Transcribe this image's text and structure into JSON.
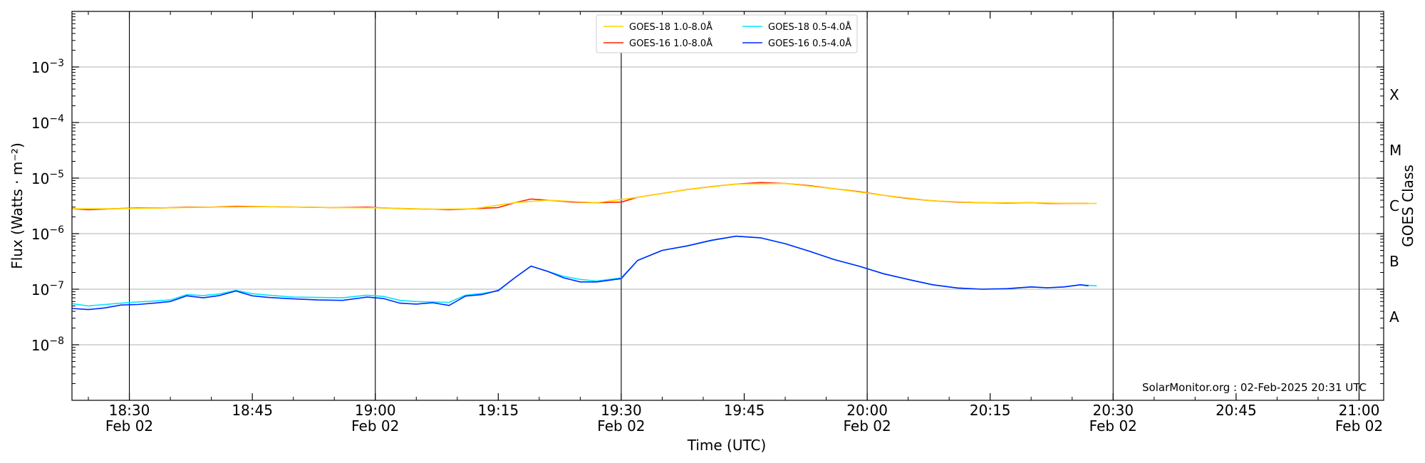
{
  "chart_data": {
    "type": "line",
    "xlabel": "Time (UTC)",
    "ylabel": "Flux (Watts · m⁻²)",
    "y2label": "GOES Class",
    "yscale": "log",
    "ylim": [
      1e-09,
      0.01
    ],
    "xlim": [
      "18:23",
      "21:03"
    ],
    "grid": "y-major",
    "legend_position": "top-center",
    "credit": "SolarMonitor.org : 02-Feb-2025 20:31 UTC",
    "x_ticks": [
      {
        "time": "18:30",
        "label": "18:30",
        "sublabel": "Feb 02",
        "vline": true
      },
      {
        "time": "18:45",
        "label": "18:45",
        "sublabel": "",
        "vline": false
      },
      {
        "time": "19:00",
        "label": "19:00",
        "sublabel": "Feb 02",
        "vline": true
      },
      {
        "time": "19:15",
        "label": "19:15",
        "sublabel": "",
        "vline": false
      },
      {
        "time": "19:30",
        "label": "19:30",
        "sublabel": "Feb 02",
        "vline": true
      },
      {
        "time": "19:45",
        "label": "19:45",
        "sublabel": "",
        "vline": false
      },
      {
        "time": "20:00",
        "label": "20:00",
        "sublabel": "Feb 02",
        "vline": true
      },
      {
        "time": "20:15",
        "label": "20:15",
        "sublabel": "",
        "vline": false
      },
      {
        "time": "20:30",
        "label": "20:30",
        "sublabel": "Feb 02",
        "vline": true
      },
      {
        "time": "20:45",
        "label": "20:45",
        "sublabel": "",
        "vline": false
      },
      {
        "time": "21:00",
        "label": "21:00",
        "sublabel": "Feb 02",
        "vline": true
      }
    ],
    "y_ticks": [
      {
        "value": 1e-08,
        "mantissa": "10",
        "exp": "−8"
      },
      {
        "value": 1e-07,
        "mantissa": "10",
        "exp": "−7"
      },
      {
        "value": 1e-06,
        "mantissa": "10",
        "exp": "−6"
      },
      {
        "value": 1e-05,
        "mantissa": "10",
        "exp": "−5"
      },
      {
        "value": 0.0001,
        "mantissa": "10",
        "exp": "−4"
      },
      {
        "value": 0.001,
        "mantissa": "10",
        "exp": "−3"
      }
    ],
    "goes_classes": [
      {
        "label": "A",
        "value": 3.16e-08
      },
      {
        "label": "B",
        "value": 3.16e-07
      },
      {
        "label": "C",
        "value": 3.16e-06
      },
      {
        "label": "M",
        "value": 3.16e-05
      },
      {
        "label": "X",
        "value": 0.000316
      }
    ],
    "series": [
      {
        "name": "GOES-16 1.0-8.0Å",
        "color": "#ff2200",
        "x": [
          "18:23",
          "18:25",
          "18:28",
          "18:31",
          "18:34",
          "18:37",
          "18:40",
          "18:43",
          "18:47",
          "18:51",
          "18:55",
          "18:59",
          "19:01",
          "19:04",
          "19:07",
          "19:09",
          "19:12",
          "19:15",
          "19:17",
          "19:19",
          "19:21",
          "19:24",
          "19:27",
          "19:30",
          "19:32",
          "19:35",
          "19:38",
          "19:41",
          "19:44",
          "19:47",
          "19:50",
          "19:53",
          "19:56",
          "19:59",
          "20:02",
          "20:05",
          "20:08",
          "20:11",
          "20:14",
          "20:17",
          "20:20",
          "20:22",
          "20:25",
          "20:27"
        ],
        "y": [
          2.8e-06,
          2.7e-06,
          2.8e-06,
          2.9e-06,
          2.9e-06,
          3e-06,
          3e-06,
          3.1e-06,
          3.05e-06,
          3e-06,
          2.95e-06,
          3e-06,
          2.9e-06,
          2.8e-06,
          2.75e-06,
          2.7e-06,
          2.8e-06,
          2.95e-06,
          3.6e-06,
          4.2e-06,
          4e-06,
          3.7e-06,
          3.6e-06,
          3.7e-06,
          4.5e-06,
          5.3e-06,
          6.2e-06,
          7e-06,
          7.8e-06,
          8.3e-06,
          8e-06,
          7.3e-06,
          6.4e-06,
          5.7e-06,
          4.9e-06,
          4.3e-06,
          3.9e-06,
          3.7e-06,
          3.6e-06,
          3.55e-06,
          3.6e-06,
          3.5e-06,
          3.5e-06,
          3.5e-06
        ]
      },
      {
        "name": "GOES-18 1.0-8.0Å",
        "color": "#ffd400",
        "x": [
          "18:23",
          "18:28",
          "18:34",
          "18:40",
          "18:47",
          "18:55",
          "19:01",
          "19:07",
          "19:12",
          "19:17",
          "19:21",
          "19:27",
          "19:32",
          "19:38",
          "19:44",
          "19:50",
          "19:56",
          "20:02",
          "20:08",
          "20:14",
          "20:20",
          "20:25",
          "20:28"
        ],
        "y": [
          2.8e-06,
          2.8e-06,
          2.9e-06,
          3e-06,
          3.05e-06,
          2.95e-06,
          2.9e-06,
          2.75e-06,
          2.8e-06,
          3.6e-06,
          4e-06,
          3.6e-06,
          4.5e-06,
          6.2e-06,
          7.8e-06,
          8e-06,
          6.4e-06,
          4.9e-06,
          3.9e-06,
          3.6e-06,
          3.6e-06,
          3.5e-06,
          3.5e-06
        ]
      },
      {
        "name": "GOES-18 0.5-4.0Å",
        "color": "#00e5ff",
        "x": [
          "18:23",
          "18:25",
          "18:27",
          "18:29",
          "18:31",
          "18:33",
          "18:35",
          "18:37",
          "18:39",
          "18:41",
          "18:43",
          "18:45",
          "18:47",
          "18:50",
          "18:53",
          "18:56",
          "18:59",
          "19:01",
          "19:03",
          "19:05",
          "19:07",
          "19:09",
          "19:11",
          "19:13",
          "19:15",
          "19:17",
          "19:19",
          "19:21",
          "19:23",
          "19:25",
          "19:27",
          "19:30",
          "19:32",
          "19:35",
          "19:38",
          "19:41",
          "19:44",
          "19:47",
          "19:50",
          "19:53",
          "19:56",
          "19:59",
          "20:02",
          "20:05",
          "20:08",
          "20:11",
          "20:14",
          "20:17",
          "20:20",
          "20:22",
          "20:24",
          "20:26",
          "20:28"
        ],
        "y": [
          5.5e-08,
          5e-08,
          5.3e-08,
          5.6e-08,
          5.9e-08,
          6.1e-08,
          6.4e-08,
          8e-08,
          7.7e-08,
          8.2e-08,
          9.5e-08,
          8.3e-08,
          7.8e-08,
          7.2e-08,
          7.1e-08,
          7e-08,
          7.8e-08,
          7.4e-08,
          6.3e-08,
          6e-08,
          5.9e-08,
          5.8e-08,
          7.8e-08,
          8.4e-08,
          9.3e-08,
          1.6e-07,
          2.6e-07,
          2.1e-07,
          1.7e-07,
          1.5e-07,
          1.4e-07,
          1.6e-07,
          3.3e-07,
          5e-07,
          6e-07,
          7.5e-07,
          9e-07,
          8.4e-07,
          6.6e-07,
          4.8e-07,
          3.4e-07,
          2.6e-07,
          1.9e-07,
          1.5e-07,
          1.2e-07,
          1.05e-07,
          1e-07,
          1.02e-07,
          1.1e-07,
          1.06e-07,
          1.1e-07,
          1.2e-07,
          1.15e-07
        ]
      },
      {
        "name": "GOES-16 0.5-4.0Å",
        "color": "#0028ff",
        "x": [
          "18:23",
          "18:25",
          "18:27",
          "18:29",
          "18:31",
          "18:33",
          "18:35",
          "18:37",
          "18:39",
          "18:41",
          "18:43",
          "18:45",
          "18:47",
          "18:50",
          "18:53",
          "18:56",
          "18:59",
          "19:01",
          "19:03",
          "19:05",
          "19:07",
          "19:09",
          "19:11",
          "19:13",
          "19:15",
          "19:17",
          "19:19",
          "19:21",
          "19:23",
          "19:25",
          "19:27",
          "19:30",
          "19:32",
          "19:35",
          "19:38",
          "19:41",
          "19:44",
          "19:47",
          "19:50",
          "19:53",
          "19:56",
          "19:59",
          "20:02",
          "20:05",
          "20:08",
          "20:11",
          "20:14",
          "20:17",
          "20:20",
          "20:22",
          "20:24",
          "20:26",
          "20:27"
        ],
        "y": [
          4.5e-08,
          4.3e-08,
          4.6e-08,
          5.2e-08,
          5.3e-08,
          5.6e-08,
          6e-08,
          7.6e-08,
          7e-08,
          7.7e-08,
          9.3e-08,
          7.6e-08,
          7.1e-08,
          6.7e-08,
          6.4e-08,
          6.3e-08,
          7.2e-08,
          6.8e-08,
          5.6e-08,
          5.4e-08,
          5.7e-08,
          5.1e-08,
          7.5e-08,
          8e-08,
          9.5e-08,
          1.6e-07,
          2.6e-07,
          2.1e-07,
          1.6e-07,
          1.35e-07,
          1.35e-07,
          1.55e-07,
          3.3e-07,
          5e-07,
          6e-07,
          7.6e-07,
          9e-07,
          8.4e-07,
          6.6e-07,
          4.8e-07,
          3.4e-07,
          2.6e-07,
          1.9e-07,
          1.5e-07,
          1.2e-07,
          1.05e-07,
          1e-07,
          1.02e-07,
          1.1e-07,
          1.06e-07,
          1.1e-07,
          1.2e-07,
          1.15e-07
        ]
      }
    ],
    "legend_order": [
      1,
      2,
      0,
      3
    ]
  }
}
